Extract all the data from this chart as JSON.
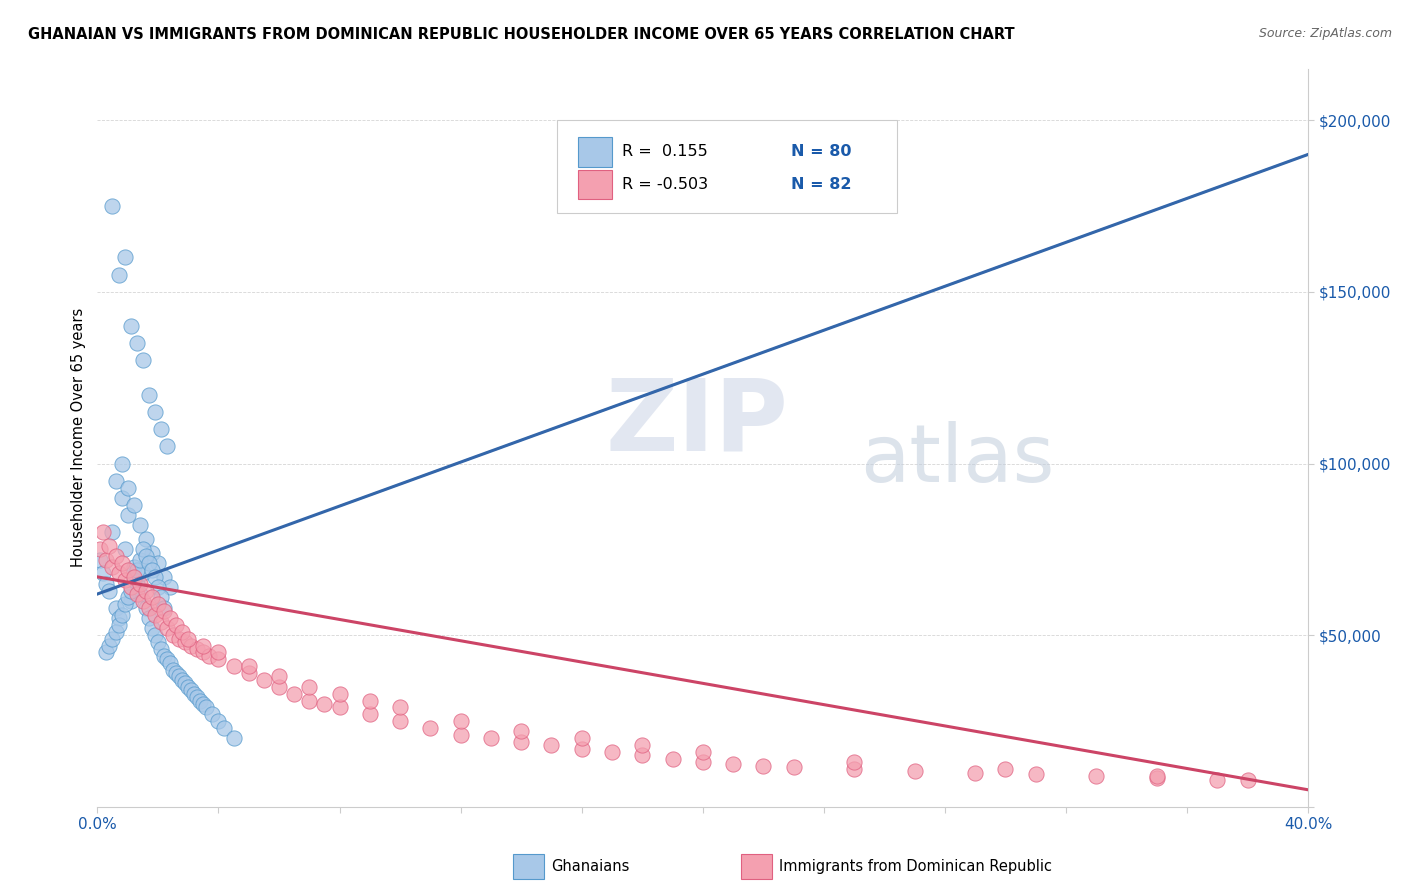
{
  "title": "GHANAIAN VS IMMIGRANTS FROM DOMINICAN REPUBLIC HOUSEHOLDER INCOME OVER 65 YEARS CORRELATION CHART",
  "source_text": "Source: ZipAtlas.com",
  "ylabel": "Householder Income Over 65 years",
  "xmin": 0.0,
  "xmax": 0.4,
  "ymin": 0,
  "ymax": 215000,
  "yticks": [
    0,
    50000,
    100000,
    150000,
    200000
  ],
  "ytick_labels": [
    "",
    "$50,000",
    "$100,000",
    "$150,000",
    "$200,000"
  ],
  "legend_r1": "R =  0.155",
  "legend_n1": "N = 80",
  "legend_r2": "R = -0.503",
  "legend_n2": "N = 82",
  "color_blue_fill": "#a8c8e8",
  "color_blue_edge": "#5599cc",
  "color_pink_fill": "#f4a0b0",
  "color_pink_edge": "#e06080",
  "color_blue_line": "#3366aa",
  "color_pink_line": "#cc4466",
  "color_axis_label": "#1a5aaa",
  "watermark_zip_color": "#d0d8e8",
  "watermark_atlas_color": "#c8d4e4",
  "legend_label1": "Ghanaians",
  "legend_label2": "Immigrants from Dominican Republic",
  "gh_R": 0.155,
  "gh_slope": 320000,
  "gh_intercept": 62000,
  "dom_R": -0.503,
  "dom_slope": -155000,
  "dom_intercept": 67000,
  "ghanaian_x": [
    0.001,
    0.002,
    0.003,
    0.004,
    0.005,
    0.006,
    0.007,
    0.008,
    0.009,
    0.01,
    0.011,
    0.012,
    0.013,
    0.014,
    0.015,
    0.016,
    0.017,
    0.018,
    0.019,
    0.02,
    0.021,
    0.022,
    0.023,
    0.024,
    0.025,
    0.026,
    0.027,
    0.028,
    0.029,
    0.03,
    0.031,
    0.032,
    0.033,
    0.034,
    0.035,
    0.036,
    0.038,
    0.04,
    0.042,
    0.045,
    0.005,
    0.007,
    0.009,
    0.011,
    0.013,
    0.015,
    0.017,
    0.019,
    0.021,
    0.023,
    0.006,
    0.008,
    0.01,
    0.012,
    0.014,
    0.016,
    0.018,
    0.02,
    0.022,
    0.024,
    0.003,
    0.004,
    0.005,
    0.006,
    0.007,
    0.008,
    0.009,
    0.01,
    0.011,
    0.012,
    0.013,
    0.014,
    0.015,
    0.016,
    0.017,
    0.018,
    0.019,
    0.02,
    0.021,
    0.022
  ],
  "ghanaian_y": [
    72000,
    68000,
    65000,
    63000,
    80000,
    58000,
    55000,
    90000,
    75000,
    85000,
    60000,
    70000,
    65000,
    62000,
    68000,
    58000,
    55000,
    52000,
    50000,
    48000,
    46000,
    44000,
    43000,
    42000,
    40000,
    39000,
    38000,
    37000,
    36000,
    35000,
    34000,
    33000,
    32000,
    31000,
    30000,
    29000,
    27000,
    25000,
    23000,
    20000,
    175000,
    155000,
    160000,
    140000,
    135000,
    130000,
    120000,
    115000,
    110000,
    105000,
    95000,
    100000,
    93000,
    88000,
    82000,
    78000,
    74000,
    71000,
    67000,
    64000,
    45000,
    47000,
    49000,
    51000,
    53000,
    56000,
    59000,
    61000,
    63000,
    66000,
    69000,
    72000,
    75000,
    73000,
    71000,
    69000,
    67000,
    64000,
    61000,
    58000
  ],
  "dominican_x": [
    0.001,
    0.003,
    0.005,
    0.007,
    0.009,
    0.011,
    0.013,
    0.015,
    0.017,
    0.019,
    0.021,
    0.023,
    0.025,
    0.027,
    0.029,
    0.031,
    0.033,
    0.035,
    0.037,
    0.04,
    0.045,
    0.05,
    0.055,
    0.06,
    0.065,
    0.07,
    0.075,
    0.08,
    0.09,
    0.1,
    0.11,
    0.12,
    0.13,
    0.14,
    0.15,
    0.16,
    0.17,
    0.18,
    0.19,
    0.2,
    0.21,
    0.22,
    0.23,
    0.25,
    0.27,
    0.29,
    0.31,
    0.33,
    0.35,
    0.37,
    0.002,
    0.004,
    0.006,
    0.008,
    0.01,
    0.012,
    0.014,
    0.016,
    0.018,
    0.02,
    0.022,
    0.024,
    0.026,
    0.028,
    0.03,
    0.035,
    0.04,
    0.05,
    0.06,
    0.07,
    0.08,
    0.09,
    0.1,
    0.12,
    0.14,
    0.16,
    0.18,
    0.2,
    0.25,
    0.3,
    0.35,
    0.38
  ],
  "dominican_y": [
    75000,
    72000,
    70000,
    68000,
    66000,
    64000,
    62000,
    60000,
    58000,
    56000,
    54000,
    52000,
    50000,
    49000,
    48000,
    47000,
    46000,
    45000,
    44000,
    43000,
    41000,
    39000,
    37000,
    35000,
    33000,
    31000,
    30000,
    29000,
    27000,
    25000,
    23000,
    21000,
    20000,
    19000,
    18000,
    17000,
    16000,
    15000,
    14000,
    13000,
    12500,
    12000,
    11500,
    11000,
    10500,
    10000,
    9500,
    9000,
    8500,
    8000,
    80000,
    76000,
    73000,
    71000,
    69000,
    67000,
    65000,
    63000,
    61000,
    59000,
    57000,
    55000,
    53000,
    51000,
    49000,
    47000,
    45000,
    41000,
    38000,
    35000,
    33000,
    31000,
    29000,
    25000,
    22000,
    20000,
    18000,
    16000,
    13000,
    11000,
    9000,
    8000
  ]
}
